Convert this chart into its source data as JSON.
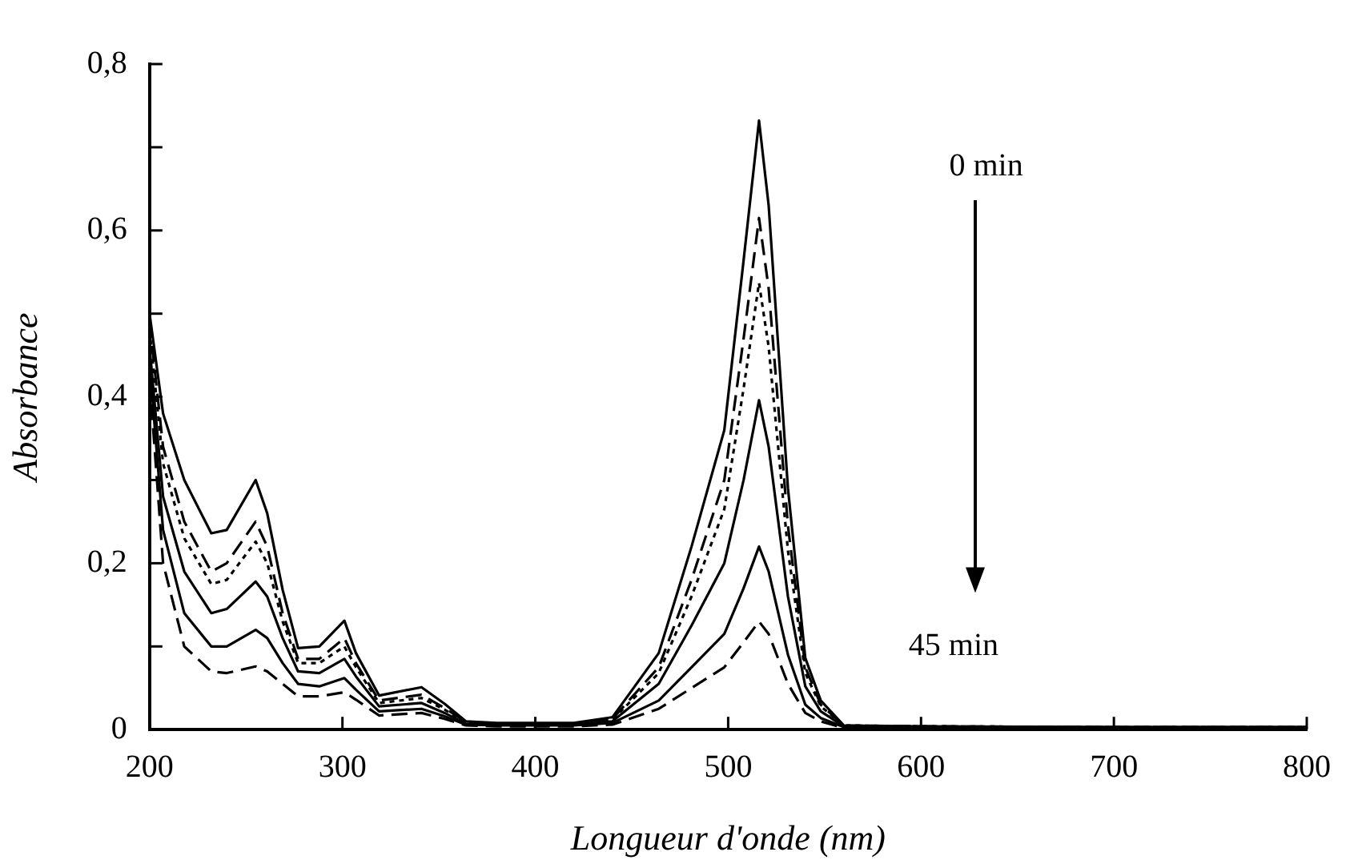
{
  "chart_data": {
    "type": "line",
    "xlabel": "Longueur d'onde (nm)",
    "ylabel": "Absorbance",
    "x": [
      200,
      207,
      218,
      232,
      240,
      255,
      261,
      269,
      277,
      288,
      301,
      307,
      319,
      341,
      353,
      364,
      380,
      420,
      440,
      464,
      481,
      498,
      508,
      516,
      521,
      531,
      540,
      548,
      560,
      600,
      700,
      800
    ],
    "series": [
      {
        "color": "#000000",
        "line_style": "solid",
        "values": [
          0.5,
          0.38,
          0.3,
          0.236,
          0.24,
          0.3,
          0.26,
          0.168,
          0.098,
          0.1,
          0.131,
          0.092,
          0.041,
          0.051,
          0.031,
          0.01,
          0.008,
          0.008,
          0.015,
          0.092,
          0.22,
          0.36,
          0.564,
          0.732,
          0.63,
          0.29,
          0.086,
          0.035,
          0.005,
          0.004,
          0.003,
          0.003
        ]
      },
      {
        "color": "#000000",
        "line_style": "dashed",
        "values": [
          0.49,
          0.34,
          0.25,
          0.19,
          0.2,
          0.25,
          0.22,
          0.14,
          0.085,
          0.085,
          0.11,
          0.08,
          0.035,
          0.042,
          0.026,
          0.009,
          0.007,
          0.007,
          0.013,
          0.075,
          0.18,
          0.3,
          0.47,
          0.615,
          0.53,
          0.245,
          0.075,
          0.03,
          0.005,
          0.004,
          0.003,
          0.003
        ]
      },
      {
        "color": "#000000",
        "line_style": "dotted",
        "values": [
          0.48,
          0.32,
          0.23,
          0.175,
          0.18,
          0.226,
          0.2,
          0.13,
          0.08,
          0.08,
          0.1,
          0.075,
          0.032,
          0.038,
          0.024,
          0.008,
          0.007,
          0.007,
          0.012,
          0.068,
          0.16,
          0.265,
          0.41,
          0.537,
          0.46,
          0.215,
          0.068,
          0.028,
          0.005,
          0.004,
          0.003,
          0.003
        ]
      },
      {
        "color": "#000000",
        "line_style": "solid",
        "values": [
          0.46,
          0.28,
          0.19,
          0.14,
          0.145,
          0.178,
          0.16,
          0.11,
          0.07,
          0.068,
          0.085,
          0.064,
          0.028,
          0.032,
          0.02,
          0.007,
          0.006,
          0.006,
          0.01,
          0.055,
          0.125,
          0.2,
          0.3,
          0.396,
          0.34,
          0.16,
          0.052,
          0.022,
          0.004,
          0.003,
          0.003,
          0.003
        ]
      },
      {
        "color": "#000000",
        "line_style": "solid",
        "values": [
          0.44,
          0.24,
          0.14,
          0.1,
          0.1,
          0.12,
          0.11,
          0.08,
          0.055,
          0.052,
          0.062,
          0.048,
          0.022,
          0.025,
          0.016,
          0.006,
          0.005,
          0.005,
          0.008,
          0.035,
          0.075,
          0.115,
          0.17,
          0.22,
          0.19,
          0.09,
          0.03,
          0.014,
          0.003,
          0.003,
          0.002,
          0.002
        ]
      },
      {
        "color": "#000000",
        "line_style": "dashed",
        "values": [
          0.42,
          0.2,
          0.1,
          0.07,
          0.068,
          0.076,
          0.07,
          0.055,
          0.04,
          0.04,
          0.045,
          0.036,
          0.017,
          0.02,
          0.013,
          0.005,
          0.004,
          0.004,
          0.006,
          0.025,
          0.05,
          0.075,
          0.105,
          0.13,
          0.115,
          0.055,
          0.02,
          0.01,
          0.002,
          0.002,
          0.002,
          0.002
        ]
      }
    ],
    "xlim": [
      200,
      800
    ],
    "xticks": [
      200,
      300,
      400,
      500,
      600,
      700,
      800
    ],
    "ylim": [
      0,
      0.8
    ],
    "yticks": [
      {
        "value": 0,
        "label": "0"
      },
      {
        "value": 0.1,
        "label": null
      },
      {
        "value": 0.2,
        "label": "0,2"
      },
      {
        "value": 0.3,
        "label": null
      },
      {
        "value": 0.4,
        "label": "0,4"
      },
      {
        "value": 0.5,
        "label": null
      },
      {
        "value": 0.6,
        "label": "0,6"
      },
      {
        "value": 0.7,
        "label": null
      },
      {
        "value": 0.8,
        "label": "0,8"
      }
    ],
    "annotations": [
      "0 min",
      "45 min"
    ],
    "grid": false,
    "legend": false,
    "marker": "none"
  }
}
